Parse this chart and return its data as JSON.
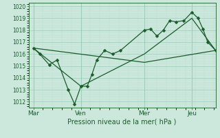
{
  "background_color": "#cce8dd",
  "grid_color_major": "#99ccbb",
  "grid_color_minor": "#bbddcc",
  "line_color": "#1a5c2a",
  "title": "Pression niveau de la mer( hPa )",
  "ylim": [
    1011.5,
    1020.3
  ],
  "yticks": [
    1012,
    1013,
    1014,
    1015,
    1016,
    1017,
    1018,
    1019,
    1020
  ],
  "day_labels": [
    "Mar",
    "Ven",
    "Mer",
    "Jeu"
  ],
  "day_positions": [
    0,
    3,
    7,
    10
  ],
  "xlim": [
    -0.3,
    11.5
  ],
  "series_main": [
    [
      0.0,
      1016.5
    ],
    [
      0.4,
      1016.0
    ],
    [
      1.0,
      1015.1
    ],
    [
      1.5,
      1015.5
    ],
    [
      2.2,
      1013.0
    ],
    [
      2.6,
      1011.8
    ],
    [
      3.0,
      1013.3
    ],
    [
      3.4,
      1013.3
    ],
    [
      3.7,
      1014.3
    ],
    [
      4.0,
      1015.5
    ],
    [
      4.5,
      1016.3
    ],
    [
      5.0,
      1016.0
    ],
    [
      5.5,
      1016.3
    ],
    [
      7.0,
      1018.0
    ],
    [
      7.4,
      1018.1
    ],
    [
      7.8,
      1017.5
    ],
    [
      8.2,
      1018.0
    ],
    [
      8.6,
      1018.8
    ],
    [
      9.0,
      1018.7
    ],
    [
      9.5,
      1018.8
    ],
    [
      10.0,
      1019.5
    ],
    [
      10.4,
      1019.0
    ],
    [
      10.7,
      1018.1
    ],
    [
      11.0,
      1017.0
    ],
    [
      11.5,
      1016.3
    ]
  ],
  "series_envelope": [
    [
      0.0,
      1016.5
    ],
    [
      3.0,
      1013.3
    ],
    [
      7.0,
      1016.0
    ],
    [
      10.0,
      1019.0
    ],
    [
      11.5,
      1016.3
    ]
  ],
  "series_straight": [
    [
      0.0,
      1016.5
    ],
    [
      7.0,
      1015.3
    ],
    [
      11.5,
      1016.3
    ]
  ]
}
